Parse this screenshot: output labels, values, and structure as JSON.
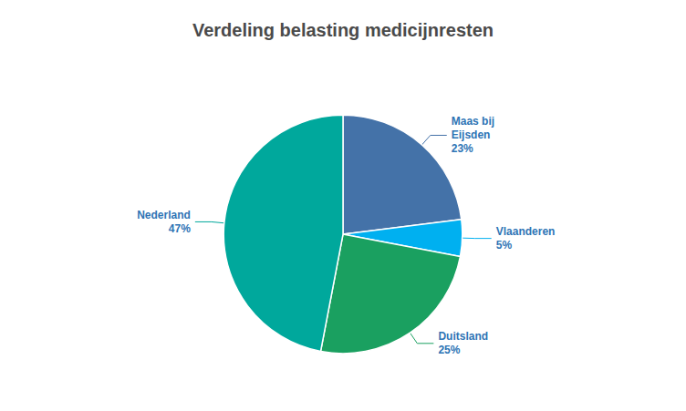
{
  "chart_data": {
    "type": "pie",
    "title": "Verdeling belasting medicijnresten",
    "categories": [
      "Maas bij\nEijsden\n23%",
      "Vlaanderen\n5%",
      "Duitsland\n25%",
      "Nederland\n47%"
    ],
    "values": [
      23,
      5,
      25,
      47
    ],
    "colors": [
      "#4472A8",
      "#00B0F0",
      "#1AA060",
      "#00A89C"
    ],
    "legend": false
  }
}
